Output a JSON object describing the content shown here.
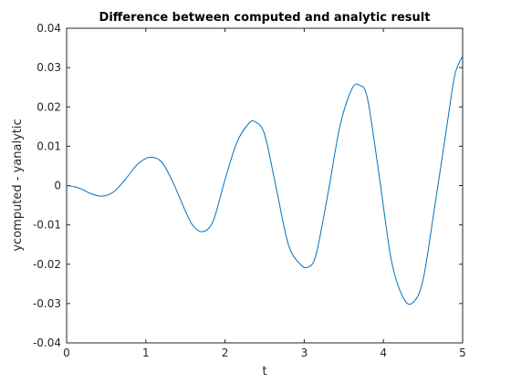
{
  "chart_data": {
    "type": "line",
    "title": "Difference between computed and analytic result",
    "xlabel": "t",
    "ylabel": "ycomputed - yanalytic",
    "xlim": [
      0,
      5
    ],
    "ylim": [
      -0.04,
      0.04
    ],
    "xticks": [
      0,
      1,
      2,
      3,
      4,
      5
    ],
    "xtick_labels": [
      "0",
      "1",
      "2",
      "3",
      "4",
      "5"
    ],
    "yticks": [
      -0.04,
      -0.03,
      -0.02,
      -0.01,
      0,
      0.01,
      0.02,
      0.03,
      0.04
    ],
    "ytick_labels": [
      "-0.04",
      "-0.03",
      "-0.02",
      "-0.01",
      "0",
      "0.01",
      "0.02",
      "0.03",
      "0.04"
    ],
    "grid": false,
    "box": true,
    "line_color": "#0072bd",
    "x": [
      0,
      0.1,
      0.2,
      0.3,
      0.45,
      0.6,
      0.75,
      0.9,
      1.05,
      1.2,
      1.35,
      1.5,
      1.6,
      1.72,
      1.85,
      2.0,
      2.15,
      2.3,
      2.38,
      2.5,
      2.65,
      2.8,
      2.95,
      3.05,
      3.15,
      3.3,
      3.45,
      3.6,
      3.7,
      3.8,
      3.95,
      4.1,
      4.25,
      4.37,
      4.5,
      4.65,
      4.8,
      4.9,
      5.0
    ],
    "y": [
      0,
      -0.0003,
      -0.001,
      -0.002,
      -0.0027,
      -0.0015,
      0.0018,
      0.0055,
      0.0072,
      0.006,
      0.0005,
      -0.0065,
      -0.0103,
      -0.0117,
      -0.009,
      0.0015,
      0.011,
      0.0158,
      0.0162,
      0.013,
      -0.001,
      -0.015,
      -0.02,
      -0.0207,
      -0.0175,
      -0.002,
      0.015,
      0.0245,
      0.0255,
      0.022,
      0.002,
      -0.019,
      -0.0285,
      -0.0298,
      -0.024,
      -0.005,
      0.015,
      0.028,
      0.033
    ]
  }
}
